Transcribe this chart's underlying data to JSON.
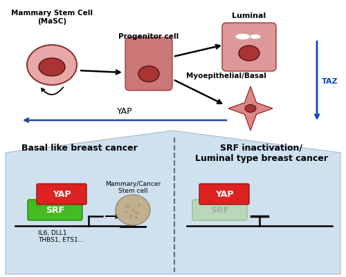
{
  "bg_color": "#ffffff",
  "light_blue_bg": "#cfe0ef",
  "cell_outer_color": "#e8a8a8",
  "cell_inner_color": "#aa3333",
  "progenitor_color": "#cc7777",
  "yap_box_color": "#dd2222",
  "srf_box_color": "#44bb22",
  "srf_faded_color": "#b8d8b8",
  "taz_arrow_color": "#1144cc",
  "title_basal": "Basal like breast cancer",
  "title_luminal": "SRF inactivation/\nLuminal type breast cancer",
  "label_masc": "Mammary Stem Cell\n(MaSC)",
  "label_progenitor": "Progenitor cell",
  "label_luminal": "Luminal",
  "label_myoepithelial": "Myoepithelial/Basal",
  "label_yap": "YAP",
  "label_taz": "TAZ",
  "label_srf": "SRF",
  "label_stem_cell_img": "Mammary/Cancer\nStem cell",
  "label_genes": "IL6, DLL1\nTHBS1, ETS1..."
}
